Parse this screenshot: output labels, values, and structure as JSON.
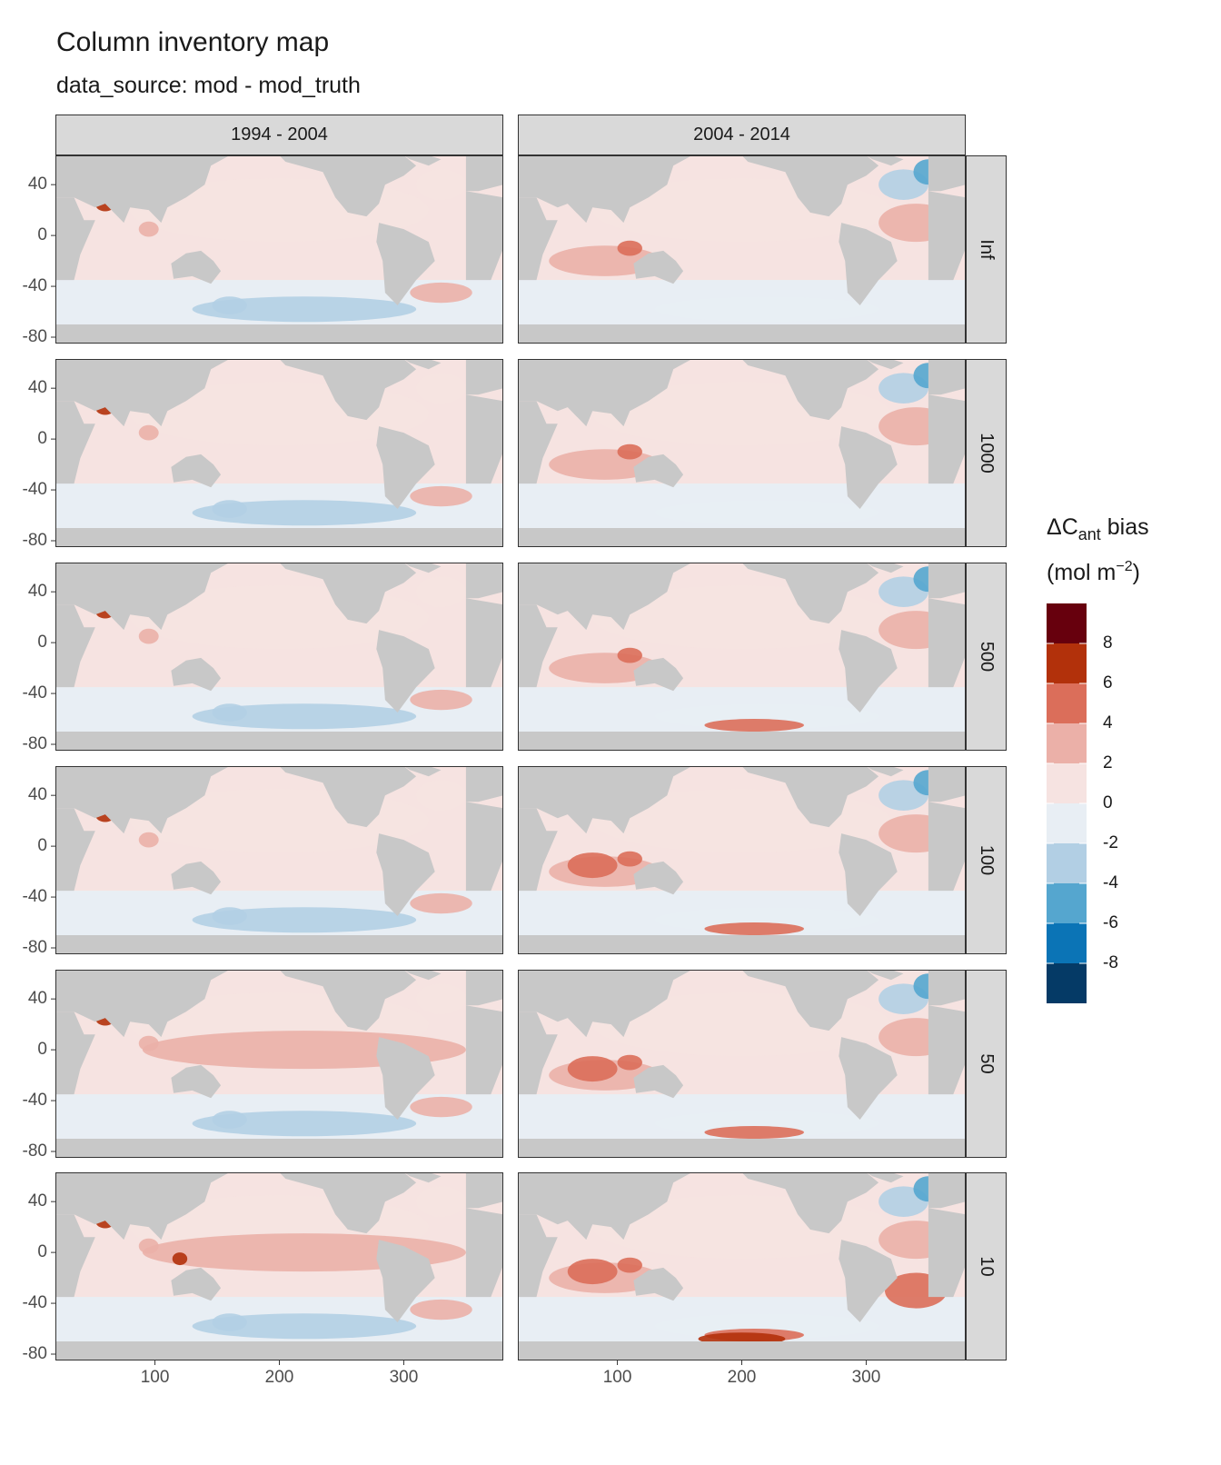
{
  "title": "Column inventory map",
  "subtitle": "data_source: mod - mod_truth",
  "facets": {
    "columns": [
      "1994 - 2004",
      "2004 - 2014"
    ],
    "rows": [
      "Inf",
      "1000",
      "500",
      "100",
      "50",
      "10"
    ]
  },
  "axes": {
    "x_ticks": [
      100,
      200,
      300
    ],
    "y_ticks": [
      40,
      0,
      -40,
      -80
    ],
    "x_range": [
      20,
      380
    ],
    "y_range": [
      -85,
      63
    ]
  },
  "legend": {
    "title_main": "ΔC",
    "title_sub": "ant",
    "title_rest": " bias",
    "title_line2_open": "(mol m",
    "title_line2_sup": "−2",
    "title_line2_close": ")",
    "bins": [
      {
        "color": "#67000d"
      },
      {
        "color": "#b2310b"
      },
      {
        "color": "#db6e5a"
      },
      {
        "color": "#ebb0a8"
      },
      {
        "color": "#f6e3e1"
      },
      {
        "color": "#e8eef4"
      },
      {
        "color": "#b2cfe4"
      },
      {
        "color": "#55a6cf"
      },
      {
        "color": "#0b74b6"
      },
      {
        "color": "#053a66"
      }
    ],
    "labels": [
      "8",
      "6",
      "4",
      "2",
      "0",
      "-2",
      "-4",
      "-6",
      "-8"
    ]
  },
  "colors": {
    "land": "#c8c8c8",
    "strip_bg": "#d9d9d9",
    "strip_border": "#333333",
    "panel_border": "#333333"
  }
}
